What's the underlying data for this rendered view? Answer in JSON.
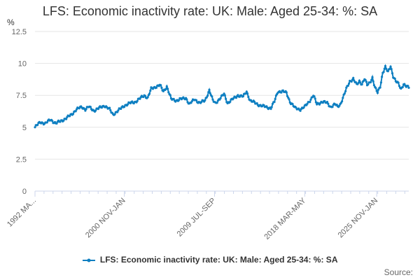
{
  "chart_data": {
    "type": "line",
    "title": "LFS: Economic inactivity rate: UK: Male: Aged 25-34: %: SA",
    "ylabel": "%",
    "xlabel": "",
    "ylim": [
      0,
      12.5
    ],
    "yticks": [
      "0",
      "2.5",
      "5",
      "7.5",
      "10",
      "12.5"
    ],
    "xtick_labels": [
      "1992 MA...",
      "2000 NOV-JAN",
      "2009 JUL-SEP",
      "2018 MAR-MAY",
      "2025 NOV-JAN"
    ],
    "xtick_positions": [
      0,
      103,
      207,
      311,
      394
    ],
    "grid": true,
    "legend_position": "bottom",
    "series": [
      {
        "name": "LFS: Economic inactivity rate: UK: Male: Aged 25-34: %: SA",
        "color": "#0e7fc1",
        "anchors": [
          [
            0,
            5.0
          ],
          [
            6,
            5.4
          ],
          [
            12,
            5.3
          ],
          [
            18,
            5.6
          ],
          [
            24,
            5.3
          ],
          [
            30,
            5.5
          ],
          [
            36,
            5.7
          ],
          [
            42,
            6.0
          ],
          [
            48,
            6.4
          ],
          [
            54,
            6.6
          ],
          [
            58,
            6.4
          ],
          [
            62,
            6.6
          ],
          [
            68,
            6.3
          ],
          [
            74,
            6.5
          ],
          [
            80,
            6.7
          ],
          [
            86,
            6.4
          ],
          [
            90,
            6.0
          ],
          [
            96,
            6.3
          ],
          [
            103,
            6.7
          ],
          [
            110,
            6.9
          ],
          [
            116,
            7.0
          ],
          [
            122,
            7.3
          ],
          [
            126,
            7.5
          ],
          [
            130,
            7.3
          ],
          [
            134,
            8.0
          ],
          [
            140,
            8.2
          ],
          [
            144,
            8.3
          ],
          [
            148,
            7.8
          ],
          [
            152,
            8.2
          ],
          [
            157,
            7.2
          ],
          [
            163,
            7.1
          ],
          [
            168,
            7.2
          ],
          [
            174,
            7.3
          ],
          [
            178,
            6.8
          ],
          [
            184,
            7.2
          ],
          [
            190,
            6.9
          ],
          [
            196,
            7.1
          ],
          [
            201,
            7.9
          ],
          [
            205,
            7.1
          ],
          [
            208,
            6.9
          ],
          [
            214,
            7.3
          ],
          [
            218,
            7.6
          ],
          [
            222,
            6.9
          ],
          [
            228,
            7.2
          ],
          [
            234,
            7.5
          ],
          [
            240,
            7.4
          ],
          [
            244,
            7.8
          ],
          [
            248,
            7.1
          ],
          [
            254,
            6.9
          ],
          [
            260,
            6.7
          ],
          [
            266,
            6.6
          ],
          [
            272,
            6.5
          ],
          [
            276,
            7.0
          ],
          [
            280,
            7.8
          ],
          [
            286,
            7.8
          ],
          [
            290,
            7.7
          ],
          [
            294,
            7.0
          ],
          [
            300,
            6.5
          ],
          [
            306,
            6.4
          ],
          [
            311,
            6.6
          ],
          [
            317,
            7.1
          ],
          [
            321,
            7.5
          ],
          [
            325,
            6.8
          ],
          [
            331,
            7.0
          ],
          [
            337,
            6.9
          ],
          [
            341,
            6.6
          ],
          [
            346,
            6.8
          ],
          [
            349,
            6.6
          ],
          [
            352,
            6.8
          ],
          [
            355,
            7.3
          ],
          [
            359,
            8.0
          ],
          [
            363,
            8.6
          ],
          [
            367,
            8.8
          ],
          [
            371,
            8.3
          ],
          [
            374,
            8.6
          ],
          [
            377,
            8.4
          ],
          [
            380,
            8.8
          ],
          [
            383,
            8.3
          ],
          [
            386,
            8.5
          ],
          [
            389,
            8.9
          ],
          [
            392,
            8.1
          ],
          [
            395,
            7.7
          ],
          [
            398,
            8.2
          ],
          [
            401,
            9.3
          ],
          [
            404,
            9.7
          ],
          [
            407,
            9.3
          ],
          [
            410,
            9.8
          ],
          [
            413,
            9.0
          ],
          [
            416,
            8.6
          ],
          [
            419,
            8.4
          ],
          [
            422,
            8.0
          ],
          [
            425,
            8.4
          ],
          [
            428,
            8.2
          ],
          [
            431,
            8.1
          ]
        ]
      }
    ]
  },
  "source_label": "Source:"
}
